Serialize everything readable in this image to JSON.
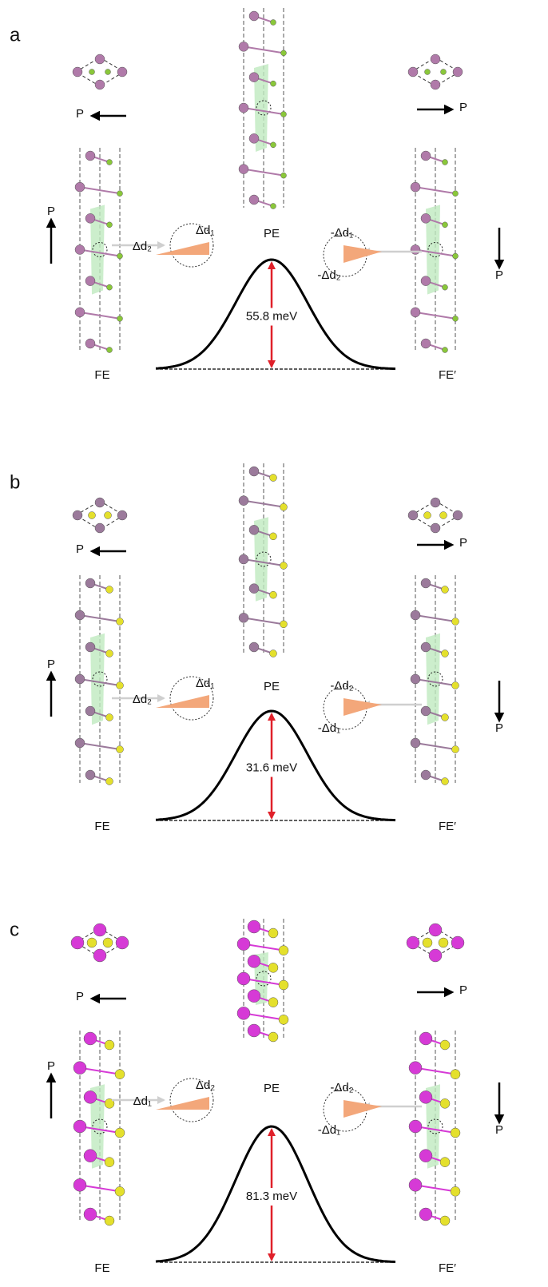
{
  "panels": [
    {
      "label": "a",
      "barrier": "55.8 meV",
      "states": {
        "left": "FE",
        "middle": "PE",
        "right": "FE′"
      },
      "polarization": [
        "P",
        "P",
        "P",
        "P"
      ],
      "left_delta": [
        "Δd₂",
        "Δd₁"
      ],
      "right_delta": [
        "-Δd₁",
        "-Δd₂"
      ]
    },
    {
      "label": "b",
      "barrier": "31.6 meV",
      "states": {
        "left": "FE",
        "middle": "PE",
        "right": "FE′"
      },
      "polarization": [
        "P",
        "P",
        "P",
        "P"
      ],
      "left_delta": [
        "Δd₂",
        "Δd₁"
      ],
      "right_delta": [
        "-Δd₂",
        "-Δd₁"
      ]
    },
    {
      "label": "c",
      "barrier": "81.3 meV",
      "states": {
        "left": "FE",
        "middle": "PE",
        "right": "FE′"
      },
      "polarization": [
        "P",
        "P",
        "P",
        "P"
      ],
      "left_delta": [
        "Δd₁",
        "Δd₂"
      ],
      "right_delta": [
        "-Δd₂",
        "-Δd₁"
      ]
    }
  ]
}
